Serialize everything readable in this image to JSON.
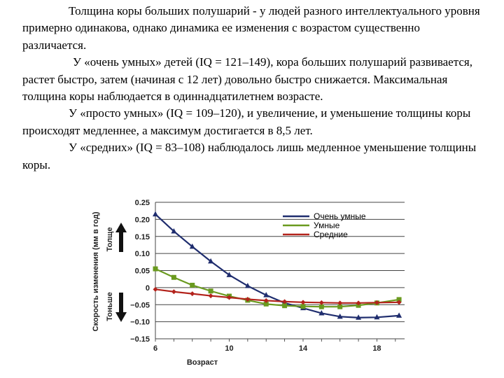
{
  "text": {
    "para1": "Толщина коры больших полушарий - у людей разного интеллектуального уровня примерно одинакова, однако динамика ее изменения с возрастом существенно различается.",
    "para2": "У «очень умных» детей (IQ = 121–149), кора больших полушарий развивается, растет быстро, затем (начиная с 12 лет) довольно быстро снижается. Максимальная толщина коры наблюдается в одиннадцатилетнем возрасте.",
    "para3": "У «просто умных» (IQ = 109–120), и увеличение, и уменьшение толщины коры происходят медленнее, а максимум достигается в 8,5 лет.",
    "para4": "У «средних» (IQ = 83–108) наблюдалось лишь медленное уменьшение толщины коры."
  },
  "chart_data": {
    "type": "line",
    "xlabel": "Возраст",
    "ylabel": "Скорость изменения (мм в год)",
    "side_labels": {
      "up": "Толще",
      "down": "Тоньше"
    },
    "xlim": [
      6,
      19.5
    ],
    "ylim": [
      -0.15,
      0.25
    ],
    "x_ticks": [
      6,
      10,
      14,
      18
    ],
    "y_ticks": [
      -0.15,
      -0.1,
      -0.05,
      0,
      0.05,
      0.1,
      0.15,
      0.2,
      0.25
    ],
    "y_tick_labels": [
      "−0.15",
      "−0.10",
      "−0.05",
      "0",
      "0.05",
      "0.10",
      "0.15",
      "0.20",
      "0.25"
    ],
    "grid": true,
    "legend_position": "top-right",
    "series": [
      {
        "name": "Очень умные",
        "color": "#1f2d6e",
        "marker": "triangle",
        "x": [
          6,
          7,
          8,
          9,
          10,
          11,
          12,
          13,
          14,
          15,
          16,
          17,
          18,
          19.2
        ],
        "y": [
          0.215,
          0.165,
          0.12,
          0.077,
          0.037,
          0.005,
          -0.022,
          -0.045,
          -0.06,
          -0.075,
          -0.085,
          -0.088,
          -0.087,
          -0.082
        ]
      },
      {
        "name": "Умные",
        "color": "#6a9a1f",
        "marker": "square",
        "x": [
          6,
          7,
          8,
          9,
          10,
          11,
          12,
          13,
          14,
          15,
          16,
          17,
          18,
          19.2
        ],
        "y": [
          0.055,
          0.03,
          0.007,
          -0.01,
          -0.025,
          -0.037,
          -0.048,
          -0.053,
          -0.055,
          -0.056,
          -0.056,
          -0.052,
          -0.045,
          -0.035
        ]
      },
      {
        "name": "Средние",
        "color": "#b3231c",
        "marker": "diamond",
        "x": [
          6,
          7,
          8,
          9,
          10,
          11,
          12,
          13,
          14,
          15,
          16,
          17,
          18,
          19.2
        ],
        "y": [
          -0.005,
          -0.012,
          -0.018,
          -0.024,
          -0.029,
          -0.034,
          -0.038,
          -0.041,
          -0.043,
          -0.044,
          -0.045,
          -0.045,
          -0.044,
          -0.043
        ]
      }
    ]
  }
}
